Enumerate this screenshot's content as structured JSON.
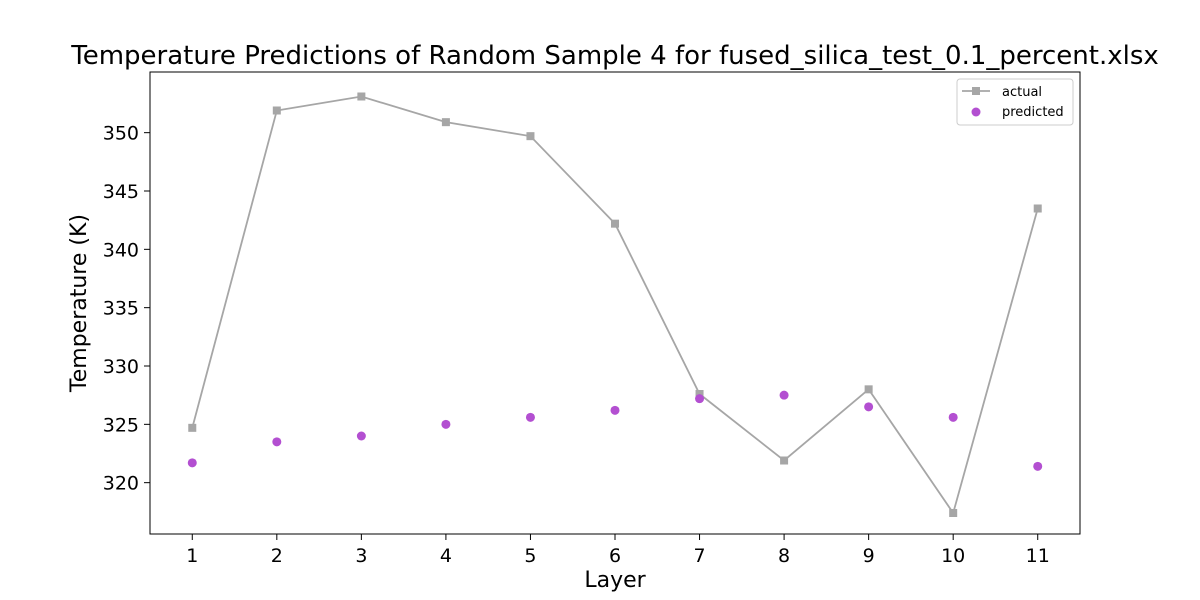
{
  "chart_data": {
    "type": "line",
    "title": "Temperature Predictions of Random Sample 4 for fused_silica_test_0.1_percent.xlsx",
    "xlabel": "Layer",
    "ylabel": "Temperature (K)",
    "x": [
      1,
      2,
      3,
      4,
      5,
      6,
      7,
      8,
      9,
      10,
      11
    ],
    "xlim": [
      0.5,
      11.5
    ],
    "ylim": [
      315.6,
      355.2
    ],
    "yticks": [
      320,
      325,
      330,
      335,
      340,
      345,
      350
    ],
    "grid": false,
    "legend_position": "top-right",
    "series": [
      {
        "name": "actual",
        "style": "line-square",
        "color": "#a6a6a6",
        "values": [
          324.7,
          351.9,
          353.1,
          350.9,
          349.7,
          342.2,
          327.6,
          321.9,
          328.0,
          317.4,
          343.5
        ]
      },
      {
        "name": "predicted",
        "style": "scatter-circle",
        "color": "#b34fd1",
        "values": [
          321.7,
          323.5,
          324.0,
          325.0,
          325.6,
          326.2,
          327.2,
          327.5,
          326.5,
          325.6,
          321.4
        ]
      }
    ]
  }
}
